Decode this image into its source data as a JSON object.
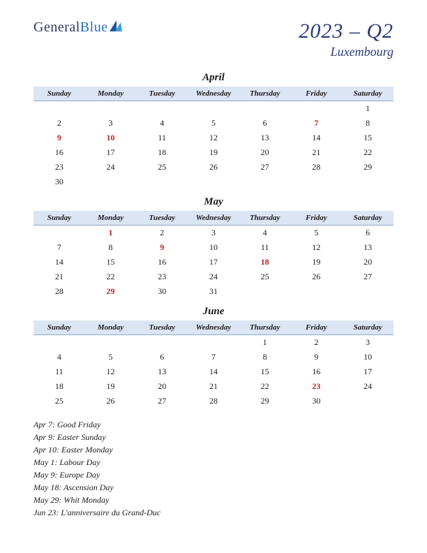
{
  "logo": {
    "part1": "General",
    "part2": "Blue"
  },
  "title": {
    "main": "2023 – Q2",
    "sub": "Luxembourg"
  },
  "day_headers": [
    "Sunday",
    "Monday",
    "Tuesday",
    "Wednesday",
    "Thursday",
    "Friday",
    "Saturday"
  ],
  "months": [
    {
      "name": "April",
      "weeks": [
        [
          "",
          "",
          "",
          "",
          "",
          "",
          "1"
        ],
        [
          "2",
          "3",
          "4",
          "5",
          "6",
          "7",
          "8"
        ],
        [
          "9",
          "10",
          "11",
          "12",
          "13",
          "14",
          "15"
        ],
        [
          "16",
          "17",
          "18",
          "19",
          "20",
          "21",
          "22"
        ],
        [
          "23",
          "24",
          "25",
          "26",
          "27",
          "28",
          "29"
        ],
        [
          "30",
          "",
          "",
          "",
          "",
          "",
          ""
        ]
      ],
      "holidays": [
        "7",
        "9",
        "10"
      ]
    },
    {
      "name": "May",
      "weeks": [
        [
          "",
          "1",
          "2",
          "3",
          "4",
          "5",
          "6"
        ],
        [
          "7",
          "8",
          "9",
          "10",
          "11",
          "12",
          "13"
        ],
        [
          "14",
          "15",
          "16",
          "17",
          "18",
          "19",
          "20"
        ],
        [
          "21",
          "22",
          "23",
          "24",
          "25",
          "26",
          "27"
        ],
        [
          "28",
          "29",
          "30",
          "31",
          "",
          "",
          ""
        ]
      ],
      "holidays": [
        "1",
        "9",
        "18",
        "29"
      ]
    },
    {
      "name": "June",
      "weeks": [
        [
          "",
          "",
          "",
          "",
          "1",
          "2",
          "3"
        ],
        [
          "4",
          "5",
          "6",
          "7",
          "8",
          "9",
          "10"
        ],
        [
          "11",
          "12",
          "13",
          "14",
          "15",
          "16",
          "17"
        ],
        [
          "18",
          "19",
          "20",
          "21",
          "22",
          "23",
          "24"
        ],
        [
          "25",
          "26",
          "27",
          "28",
          "29",
          "30",
          ""
        ]
      ],
      "holidays": [
        "23"
      ]
    }
  ],
  "holiday_list": [
    "Apr 7: Good Friday",
    "Apr 9: Easter Sunday",
    "Apr 10: Easter Monday",
    "May 1: Labour Day",
    "May 9: Europe Day",
    "May 18: Ascension Day",
    "May 29: Whit Monday",
    "Jun 23: L'anniversaire du Grand-Duc"
  ],
  "colors": {
    "header_bg": "#dbe5f4",
    "header_border": "#8fa8c8",
    "holiday_text": "#c02020",
    "title_color": "#2a3a7a",
    "logo_mark_a": "#1e5a9a",
    "logo_mark_b": "#3a9fd8"
  }
}
